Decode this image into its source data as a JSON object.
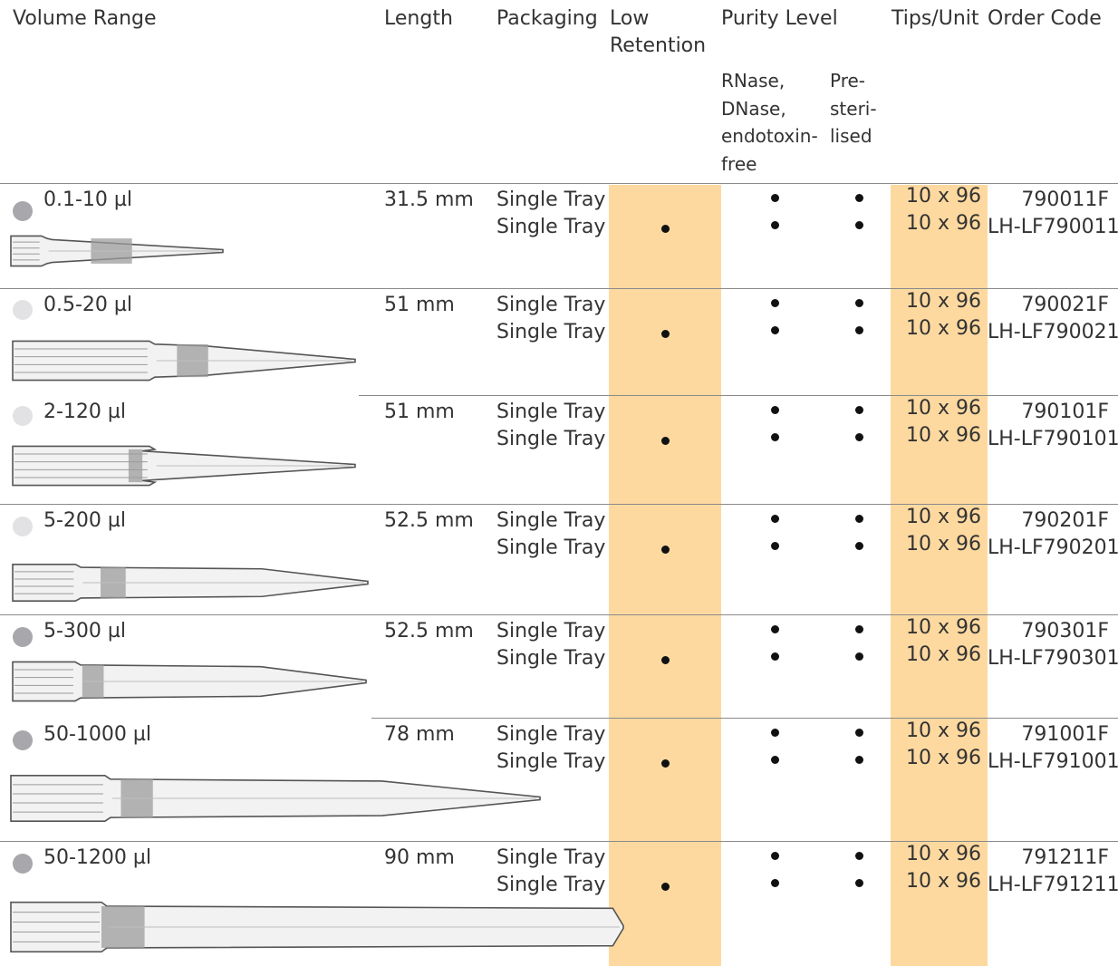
{
  "header": {
    "volume_range": "Volume Range",
    "length": "Length",
    "packaging": "Packaging",
    "low_retention": "Low Retention",
    "purity_level": "Purity Level",
    "tips_unit": "Tips/Unit",
    "order_code": "Order Code",
    "sub_rnase_lines": [
      "RNase,",
      "DNase,",
      "endotoxin-",
      "free"
    ],
    "sub_presterilised_lines": [
      "Pre-",
      "steri-",
      "lised"
    ]
  },
  "colors": {
    "highlight_band": "#fdd9a0",
    "rule": "#8a8a8a",
    "text": "#333333",
    "swatch_dark": "#a8a8ac",
    "swatch_light": "#e2e2e4"
  },
  "rows": [
    {
      "volume": "0.1-10 µl",
      "length": "31.5 mm",
      "color_swatch": "dark-gray",
      "items": [
        {
          "packaging": "Single Tray",
          "low_retention": false,
          "rnase_free": true,
          "pre_sterilised": true,
          "tips_unit": "10 x 96",
          "order_code": "790011F"
        },
        {
          "packaging": "Single Tray",
          "low_retention": true,
          "rnase_free": true,
          "pre_sterilised": true,
          "tips_unit": "10 x 96",
          "order_code": "LH-LF790011"
        }
      ]
    },
    {
      "volume": "0.5-20 µl",
      "length": "51 mm",
      "color_swatch": "light-gray",
      "items": [
        {
          "packaging": "Single Tray",
          "low_retention": false,
          "rnase_free": true,
          "pre_sterilised": true,
          "tips_unit": "10 x 96",
          "order_code": "790021F"
        },
        {
          "packaging": "Single Tray",
          "low_retention": true,
          "rnase_free": true,
          "pre_sterilised": true,
          "tips_unit": "10 x 96",
          "order_code": "LH-LF790021"
        }
      ]
    },
    {
      "volume": "2-120 µl",
      "length": "51 mm",
      "color_swatch": "light-gray",
      "items": [
        {
          "packaging": "Single Tray",
          "low_retention": false,
          "rnase_free": true,
          "pre_sterilised": true,
          "tips_unit": "10 x 96",
          "order_code": "790101F"
        },
        {
          "packaging": "Single Tray",
          "low_retention": true,
          "rnase_free": true,
          "pre_sterilised": true,
          "tips_unit": "10 x 96",
          "order_code": "LH-LF790101"
        }
      ]
    },
    {
      "volume": "5-200 µl",
      "length": "52.5 mm",
      "color_swatch": "light-gray",
      "items": [
        {
          "packaging": "Single Tray",
          "low_retention": false,
          "rnase_free": true,
          "pre_sterilised": true,
          "tips_unit": "10 x 96",
          "order_code": "790201F"
        },
        {
          "packaging": "Single Tray",
          "low_retention": true,
          "rnase_free": true,
          "pre_sterilised": true,
          "tips_unit": "10 x 96",
          "order_code": "LH-LF790201"
        }
      ]
    },
    {
      "volume": "5-300 µl",
      "length": "52.5 mm",
      "color_swatch": "dark-gray",
      "items": [
        {
          "packaging": "Single Tray",
          "low_retention": false,
          "rnase_free": true,
          "pre_sterilised": true,
          "tips_unit": "10 x 96",
          "order_code": "790301F"
        },
        {
          "packaging": "Single Tray",
          "low_retention": true,
          "rnase_free": true,
          "pre_sterilised": true,
          "tips_unit": "10 x 96",
          "order_code": "LH-LF790301"
        }
      ]
    },
    {
      "volume": "50-1000 µl",
      "length": "78 mm",
      "color_swatch": "dark-gray",
      "items": [
        {
          "packaging": "Single Tray",
          "low_retention": false,
          "rnase_free": true,
          "pre_sterilised": true,
          "tips_unit": "10 x 96",
          "order_code": "791001F"
        },
        {
          "packaging": "Single Tray",
          "low_retention": true,
          "rnase_free": true,
          "pre_sterilised": true,
          "tips_unit": "10 x 96",
          "order_code": "LH-LF791001"
        }
      ]
    },
    {
      "volume": "50-1200 µl",
      "length": "90 mm",
      "color_swatch": "dark-gray",
      "items": [
        {
          "packaging": "Single Tray",
          "low_retention": false,
          "rnase_free": true,
          "pre_sterilised": true,
          "tips_unit": "10 x 96",
          "order_code": "791211F"
        },
        {
          "packaging": "Single Tray",
          "low_retention": true,
          "rnase_free": true,
          "pre_sterilised": true,
          "tips_unit": "10 x 96",
          "order_code": "LH-LF791211"
        }
      ]
    }
  ]
}
